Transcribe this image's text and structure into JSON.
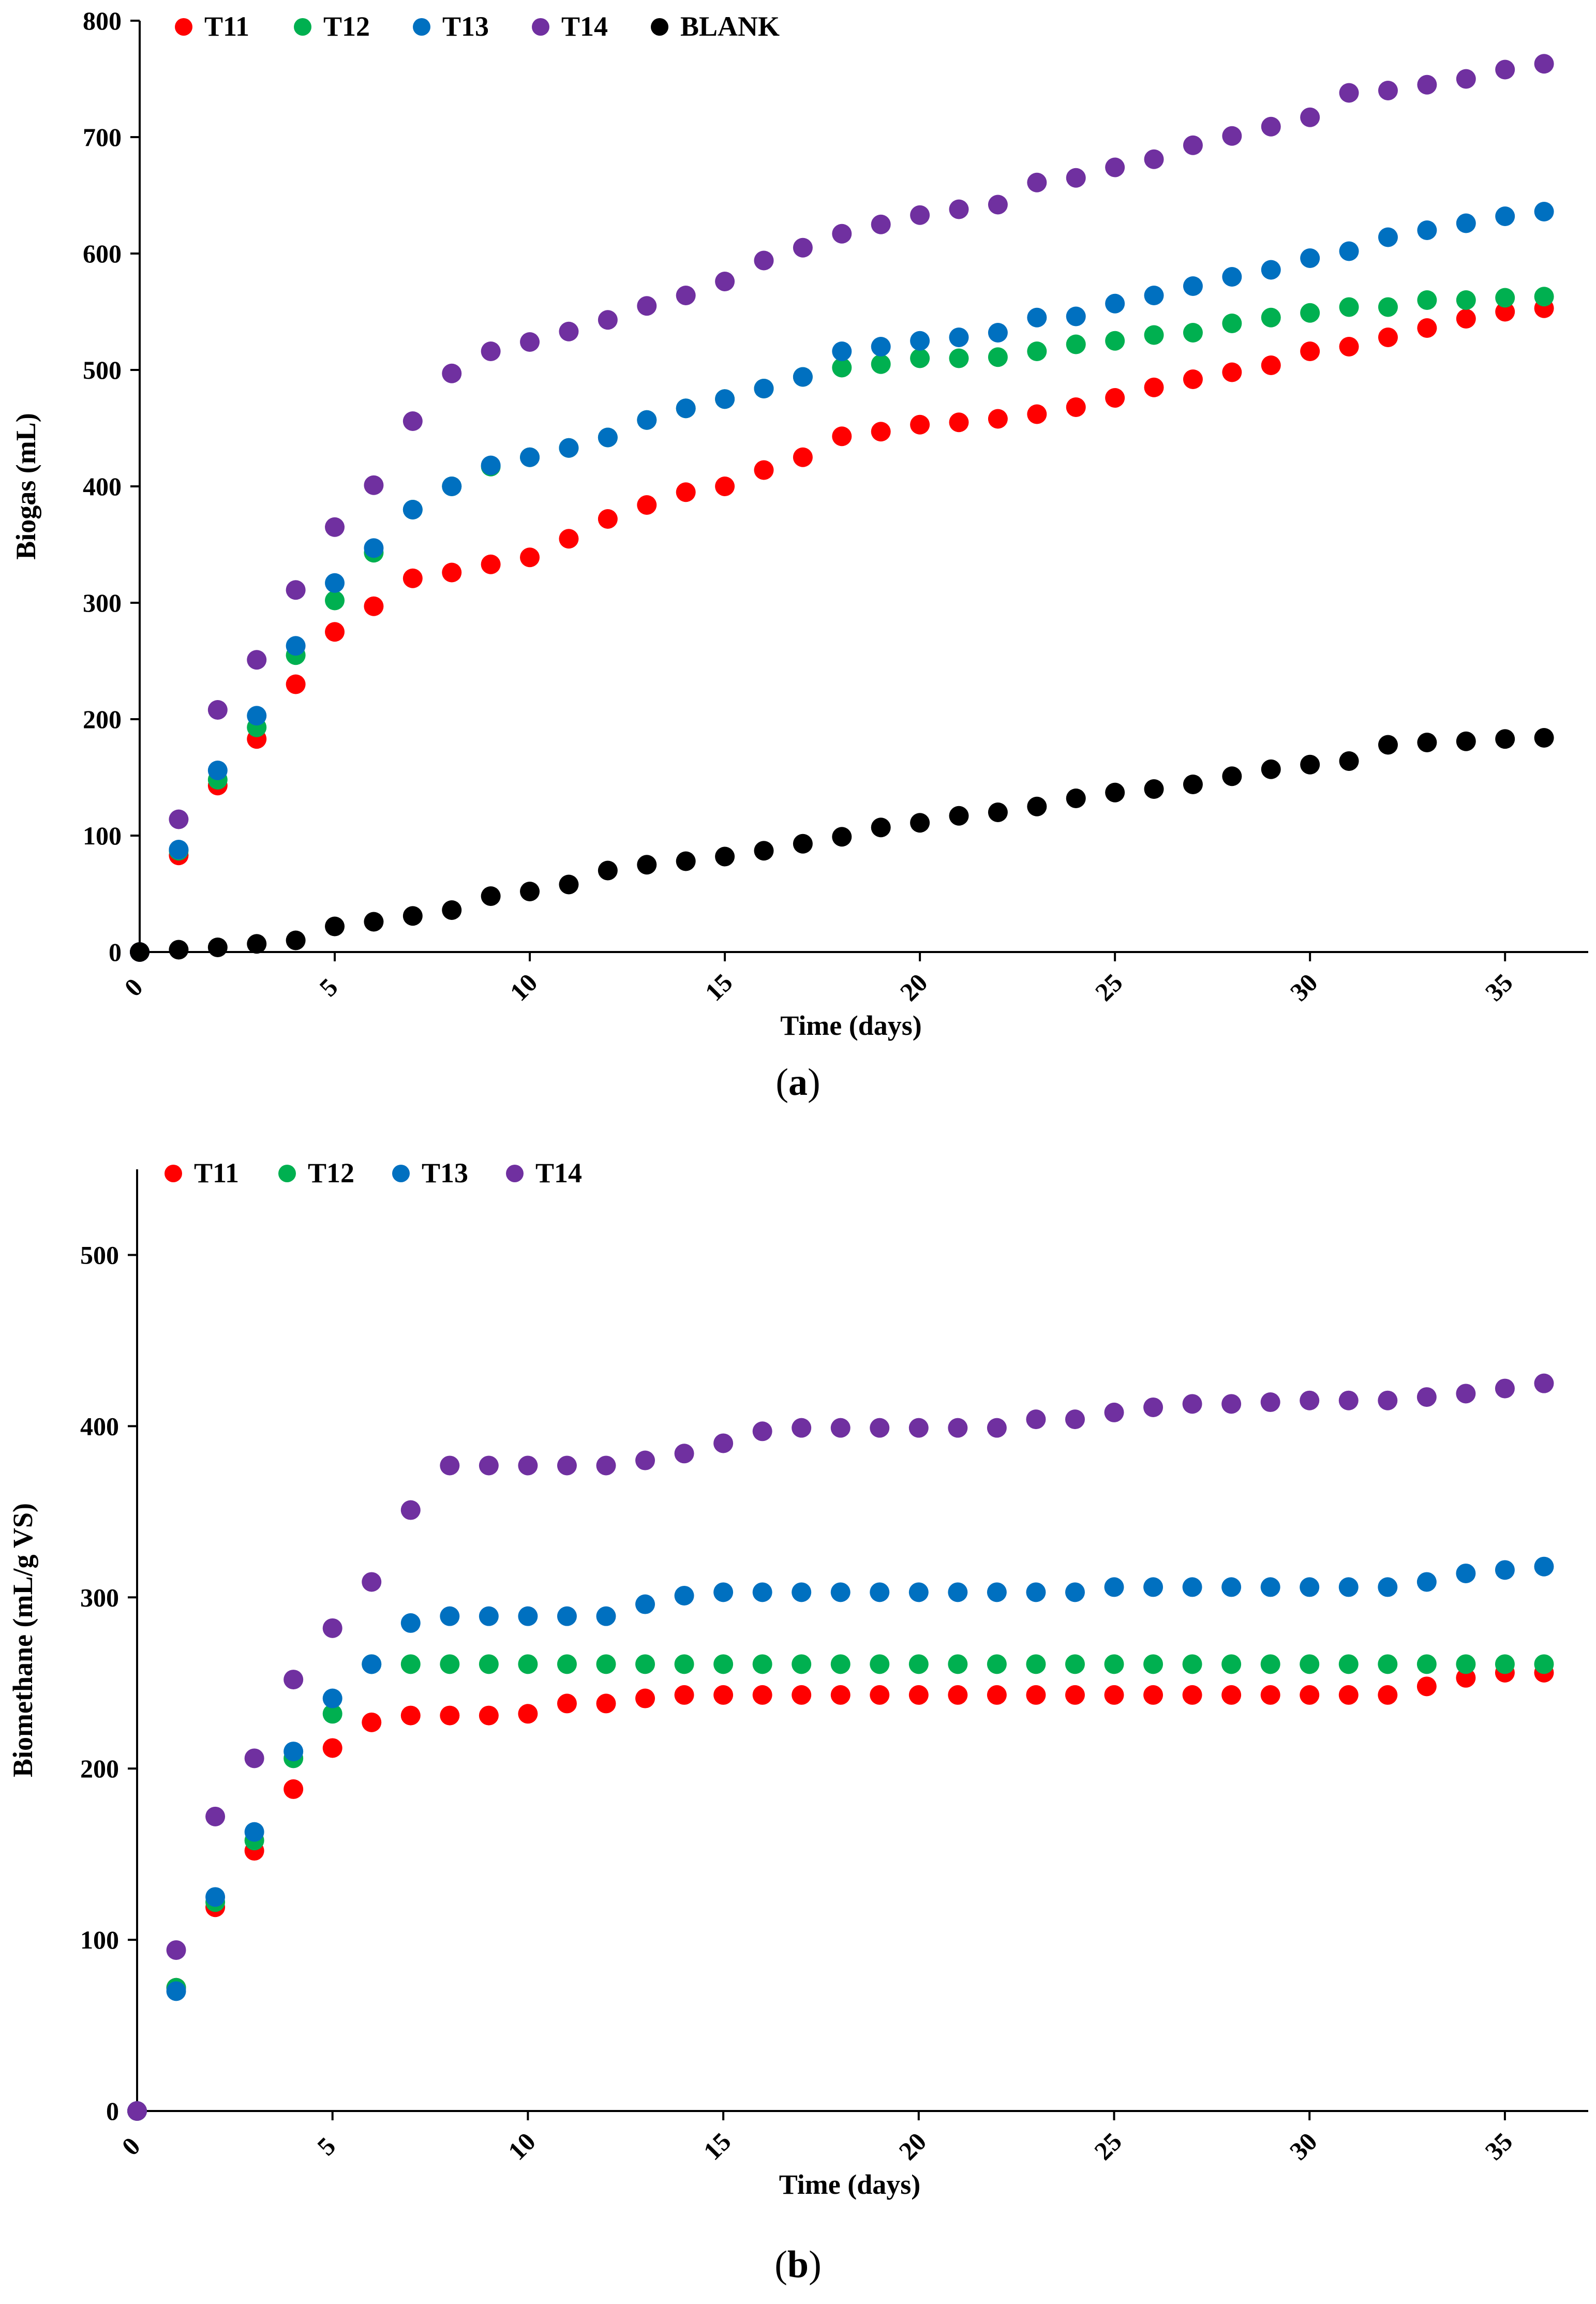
{
  "chart_data": [
    {
      "panel": "a",
      "type": "scatter",
      "caption_letter": "a",
      "xlabel": "Time (days)",
      "ylabel": "Biogas (mL)",
      "xlim": [
        0,
        37
      ],
      "ylim": [
        0,
        800
      ],
      "xticks": [
        "0",
        "5",
        "10",
        "15",
        "20",
        "25",
        "30",
        "35"
      ],
      "yticks": [
        "0",
        "100",
        "200",
        "300",
        "400",
        "500",
        "600",
        "700",
        "800"
      ],
      "legend_position": "top-left",
      "x": [
        0,
        1,
        2,
        3,
        4,
        5,
        6,
        7,
        8,
        9,
        10,
        11,
        12,
        13,
        14,
        15,
        16,
        17,
        18,
        19,
        20,
        21,
        22,
        23,
        24,
        25,
        26,
        27,
        28,
        29,
        30,
        31,
        32,
        33,
        34,
        35,
        36
      ],
      "series": [
        {
          "name": "T11",
          "color": "#ff0000",
          "values": [
            0,
            83,
            143,
            183,
            230,
            275,
            297,
            321,
            326,
            333,
            339,
            355,
            372,
            384,
            395,
            400,
            414,
            425,
            443,
            447,
            453,
            455,
            458,
            462,
            468,
            476,
            485,
            492,
            498,
            504,
            516,
            520,
            528,
            536,
            544,
            550,
            553
          ]
        },
        {
          "name": "T12",
          "color": "#00b050",
          "values": [
            0,
            87,
            148,
            193,
            255,
            302,
            343,
            380,
            400,
            417,
            425,
            433,
            442,
            457,
            467,
            475,
            484,
            494,
            502,
            505,
            510,
            510,
            511,
            516,
            522,
            525,
            530,
            532,
            540,
            545,
            549,
            554,
            554,
            560,
            560,
            562,
            563
          ]
        },
        {
          "name": "T13",
          "color": "#0070c0",
          "values": [
            0,
            88,
            156,
            203,
            263,
            317,
            347,
            380,
            400,
            418,
            425,
            433,
            442,
            457,
            467,
            475,
            484,
            494,
            516,
            520,
            525,
            528,
            532,
            545,
            546,
            557,
            564,
            572,
            580,
            586,
            596,
            602,
            614,
            620,
            626,
            632,
            636
          ]
        },
        {
          "name": "T14",
          "color": "#7030a0",
          "values": [
            0,
            114,
            208,
            251,
            311,
            365,
            401,
            456,
            497,
            516,
            524,
            533,
            543,
            555,
            564,
            576,
            594,
            605,
            617,
            625,
            633,
            638,
            642,
            661,
            665,
            674,
            681,
            693,
            701,
            709,
            717,
            738,
            740,
            745,
            750,
            758,
            763
          ]
        },
        {
          "name": "BLANK",
          "color": "#000000",
          "values": [
            0,
            2,
            4,
            7,
            10,
            22,
            26,
            31,
            36,
            48,
            52,
            58,
            70,
            75,
            78,
            82,
            87,
            93,
            99,
            107,
            111,
            117,
            120,
            125,
            132,
            137,
            140,
            144,
            151,
            157,
            161,
            164,
            178,
            180,
            181,
            183,
            184
          ]
        }
      ]
    },
    {
      "panel": "b",
      "type": "scatter",
      "caption_letter": "b",
      "xlabel": "Time (days)",
      "ylabel": "Biomethane (mL/g VS)",
      "xlim": [
        0,
        37
      ],
      "ylim": [
        0,
        550
      ],
      "xticks": [
        "0",
        "5",
        "10",
        "15",
        "20",
        "25",
        "30",
        "35"
      ],
      "yticks": [
        "0",
        "100",
        "200",
        "300",
        "400",
        "500"
      ],
      "legend_position": "top-left",
      "x": [
        0,
        1,
        2,
        3,
        4,
        5,
        6,
        7,
        8,
        9,
        10,
        11,
        12,
        13,
        14,
        15,
        16,
        17,
        18,
        19,
        20,
        21,
        22,
        23,
        24,
        25,
        26,
        27,
        28,
        29,
        30,
        31,
        32,
        33,
        34,
        35,
        36
      ],
      "series": [
        {
          "name": "T11",
          "color": "#ff0000",
          "values": [
            0,
            72,
            119,
            152,
            188,
            212,
            227,
            231,
            231,
            231,
            232,
            238,
            238,
            241,
            243,
            243,
            243,
            243,
            243,
            243,
            243,
            243,
            243,
            243,
            243,
            243,
            243,
            243,
            243,
            243,
            243,
            243,
            243,
            248,
            253,
            256,
            256
          ]
        },
        {
          "name": "T12",
          "color": "#00b050",
          "values": [
            0,
            72,
            122,
            158,
            206,
            232,
            261,
            261,
            261,
            261,
            261,
            261,
            261,
            261,
            261,
            261,
            261,
            261,
            261,
            261,
            261,
            261,
            261,
            261,
            261,
            261,
            261,
            261,
            261,
            261,
            261,
            261,
            261,
            261,
            261,
            261,
            261
          ]
        },
        {
          "name": "T13",
          "color": "#0070c0",
          "values": [
            0,
            70,
            125,
            163,
            210,
            241,
            261,
            285,
            289,
            289,
            289,
            289,
            289,
            296,
            301,
            303,
            303,
            303,
            303,
            303,
            303,
            303,
            303,
            303,
            303,
            306,
            306,
            306,
            306,
            306,
            306,
            306,
            306,
            309,
            314,
            316,
            318
          ]
        },
        {
          "name": "T14",
          "color": "#7030a0",
          "values": [
            0,
            94,
            172,
            206,
            252,
            282,
            309,
            351,
            377,
            377,
            377,
            377,
            377,
            380,
            384,
            390,
            397,
            399,
            399,
            399,
            399,
            399,
            399,
            404,
            404,
            408,
            411,
            413,
            413,
            414,
            415,
            415,
            415,
            417,
            419,
            422,
            425
          ]
        }
      ]
    }
  ]
}
